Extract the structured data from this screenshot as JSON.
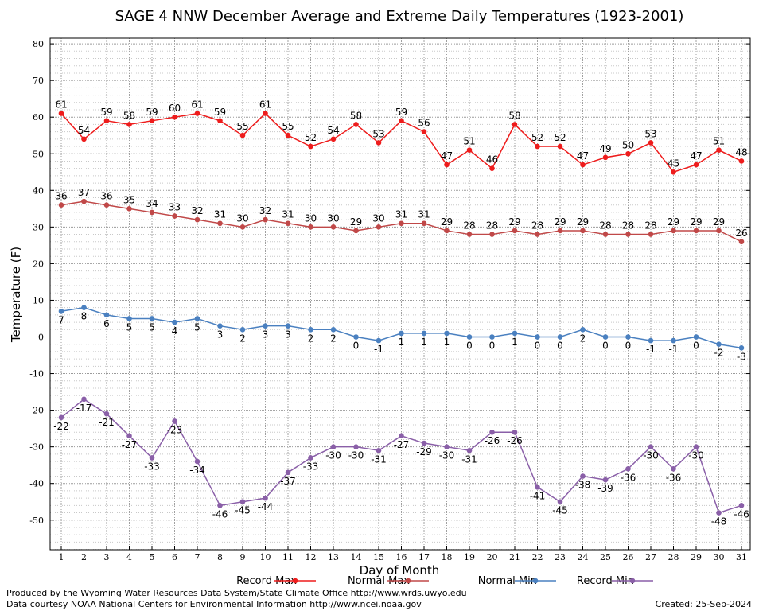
{
  "chart_data": {
    "type": "line",
    "title": "SAGE 4 NNW December Average and Extreme Daily Temperatures (1923-2001)",
    "xlabel": "Day of Month",
    "ylabel": "Temperature (F)",
    "ylim": [
      -58,
      80
    ],
    "yticks": [
      80,
      70,
      60,
      50,
      40,
      30,
      20,
      10,
      0,
      -10,
      -20,
      -30,
      -40,
      -50
    ],
    "x": [
      1,
      2,
      3,
      4,
      5,
      6,
      7,
      8,
      9,
      10,
      11,
      12,
      13,
      14,
      15,
      16,
      17,
      18,
      19,
      20,
      21,
      22,
      23,
      24,
      25,
      26,
      27,
      28,
      29,
      30,
      31
    ],
    "grid": true,
    "legend_position": "bottom",
    "series": [
      {
        "name": "Record Max",
        "color": "#ee1c1c",
        "label_pos": "above",
        "values": [
          61,
          54,
          59,
          58,
          59,
          60,
          61,
          59,
          55,
          61,
          55,
          52,
          54,
          58,
          53,
          59,
          56,
          47,
          51,
          46,
          58,
          52,
          52,
          47,
          49,
          50,
          53,
          45,
          47,
          51,
          48
        ]
      },
      {
        "name": "Normal Max",
        "color": "#c04848",
        "label_pos": "above",
        "values": [
          36,
          37,
          36,
          35,
          34,
          33,
          32,
          31,
          30,
          32,
          31,
          30,
          30,
          29,
          30,
          31,
          31,
          29,
          28,
          28,
          29,
          28,
          29,
          29,
          28,
          28,
          28,
          29,
          29,
          29,
          26
        ]
      },
      {
        "name": "Normal Min",
        "color": "#4a80c0",
        "label_pos": "below",
        "values": [
          7,
          8,
          6,
          5,
          5,
          4,
          5,
          3,
          2,
          3,
          3,
          2,
          2,
          0,
          -1,
          1,
          1,
          1,
          0,
          0,
          1,
          0,
          0,
          2,
          0,
          0,
          -1,
          -1,
          0,
          -2,
          -3
        ]
      },
      {
        "name": "Record Min",
        "color": "#8a5fa8",
        "label_pos": "below",
        "values": [
          -22,
          -17,
          -21,
          -27,
          -33,
          -23,
          -34,
          -46,
          -45,
          -44,
          -37,
          -33,
          -30,
          -30,
          -31,
          -27,
          -29,
          -30,
          -31,
          -26,
          -26,
          -41,
          -45,
          -38,
          -39,
          -36,
          -30,
          -36,
          -30,
          -48,
          -46
        ]
      }
    ]
  },
  "footer": {
    "left_line1": "Produced by the Wyoming Water Resources Data System/State Climate Office http://www.wrds.uwyo.edu",
    "left_line2": "Data courtesy NOAA National Centers for Environmental Information http://www.ncei.noaa.gov",
    "created": "Created:  25-Sep-2024"
  }
}
